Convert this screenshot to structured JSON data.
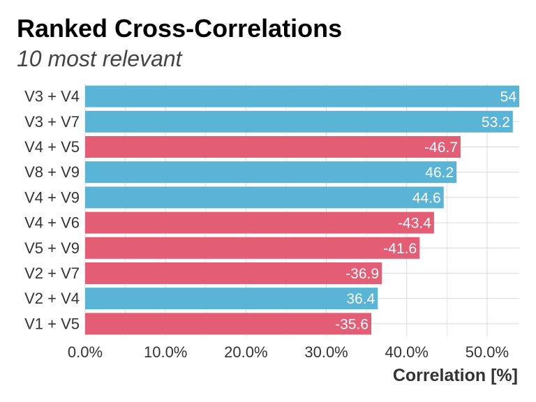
{
  "chart_data": {
    "type": "bar",
    "orientation": "horizontal",
    "title": "Ranked Cross-Correlations",
    "subtitle": "10 most relevant",
    "xlabel": "Correlation [%]",
    "ylabel": "",
    "categories": [
      "V3 + V4",
      "V3 + V7",
      "V4 + V5",
      "V8 + V9",
      "V4 + V9",
      "V4 + V6",
      "V5 + V9",
      "V2 + V7",
      "V2 + V4",
      "V1 + V5"
    ],
    "values": [
      54,
      53.2,
      -46.7,
      46.2,
      44.6,
      -43.4,
      -41.6,
      -36.9,
      36.4,
      -35.6
    ],
    "value_labels": [
      "54",
      "53.2",
      "-46.7",
      "46.2",
      "44.6",
      "-43.4",
      "-41.6",
      "-36.9",
      "36.4",
      "-35.6"
    ],
    "bar_length": "absolute value",
    "xlim": [
      0,
      54
    ],
    "xticks": [
      0,
      10,
      20,
      30,
      40,
      50
    ],
    "xtick_labels": [
      "0.0%",
      "10.0%",
      "20.0%",
      "30.0%",
      "40.0%",
      "50.0%"
    ],
    "grid": true,
    "legend": "none",
    "colors": {
      "positive": "#5ab4d6",
      "negative": "#e35d74",
      "grid": "#d9d9d9"
    }
  }
}
